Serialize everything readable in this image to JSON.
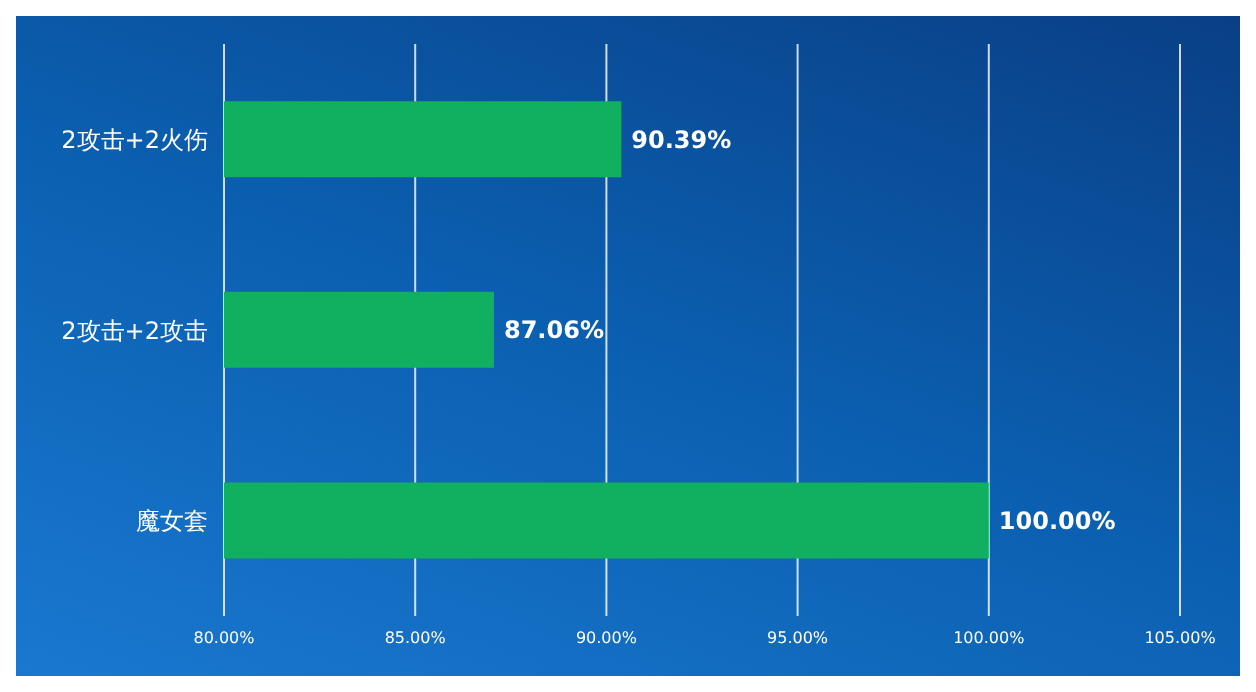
{
  "chart_data": {
    "type": "bar",
    "orientation": "horizontal",
    "categories": [
      "2攻击+2火伤",
      "2攻击+2攻击",
      "魔女套"
    ],
    "values": [
      90.39,
      87.06,
      100.0
    ],
    "value_labels": [
      "90.39%",
      "87.06%",
      "100.00%"
    ],
    "color": "#10b060",
    "xlim": [
      80,
      105
    ],
    "xticks": [
      {
        "value": 80,
        "label": "80.00%"
      },
      {
        "value": 85,
        "label": "85.00%"
      },
      {
        "value": 90,
        "label": "90.00%"
      },
      {
        "value": 95,
        "label": "95.00%"
      },
      {
        "value": 100,
        "label": "100.00%"
      },
      {
        "value": 105,
        "label": "105.00%"
      }
    ],
    "grid": "x"
  }
}
